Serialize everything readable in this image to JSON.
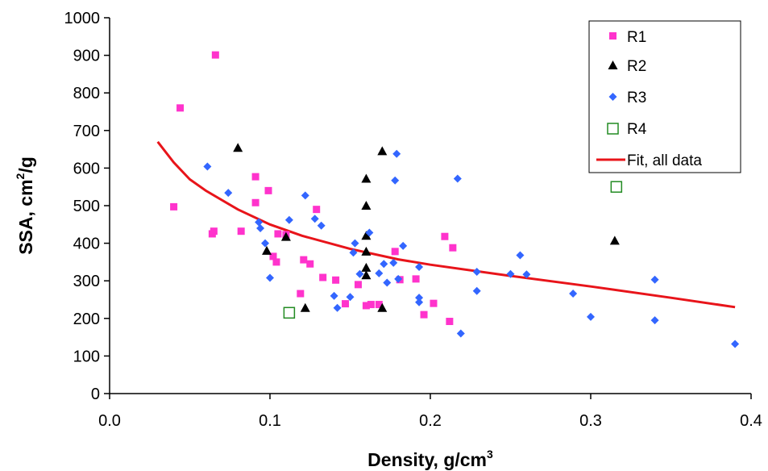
{
  "chart_data": {
    "type": "scatter",
    "title": "",
    "xlabel_main": "Density, g/cm",
    "xlabel_sup": "3",
    "ylabel_main": "SSA, cm",
    "ylabel_sup": "2",
    "ylabel_tail": "/g",
    "xlim": [
      0.0,
      0.4
    ],
    "ylim": [
      0,
      1000
    ],
    "x_ticks": [
      0.0,
      0.1,
      0.2,
      0.3,
      0.4
    ],
    "x_tick_labels": [
      "0.0",
      "0.1",
      "0.2",
      "0.3",
      "0.4"
    ],
    "y_ticks": [
      0,
      100,
      200,
      300,
      400,
      500,
      600,
      700,
      800,
      900,
      1000
    ],
    "y_tick_labels": [
      "0",
      "100",
      "200",
      "300",
      "400",
      "500",
      "600",
      "700",
      "800",
      "900",
      "1000"
    ],
    "grid": false,
    "legend_position": "top-right",
    "series": [
      {
        "name": "R1",
        "marker": "square",
        "color": "#ff33cc",
        "points": [
          [
            0.04,
            497
          ],
          [
            0.044,
            760
          ],
          [
            0.064,
            425
          ],
          [
            0.065,
            432
          ],
          [
            0.066,
            901
          ],
          [
            0.082,
            432
          ],
          [
            0.091,
            577
          ],
          [
            0.091,
            508
          ],
          [
            0.099,
            540
          ],
          [
            0.102,
            365
          ],
          [
            0.104,
            350
          ],
          [
            0.105,
            425
          ],
          [
            0.11,
            423
          ],
          [
            0.119,
            266
          ],
          [
            0.121,
            356
          ],
          [
            0.125,
            345
          ],
          [
            0.129,
            490
          ],
          [
            0.133,
            309
          ],
          [
            0.141,
            302
          ],
          [
            0.147,
            239
          ],
          [
            0.155,
            290
          ],
          [
            0.16,
            234
          ],
          [
            0.163,
            237
          ],
          [
            0.168,
            237
          ],
          [
            0.178,
            378
          ],
          [
            0.181,
            303
          ],
          [
            0.191,
            305
          ],
          [
            0.196,
            210
          ],
          [
            0.202,
            240
          ],
          [
            0.209,
            418
          ],
          [
            0.212,
            192
          ],
          [
            0.214,
            388
          ]
        ]
      },
      {
        "name": "R2",
        "marker": "triangle",
        "color": "#000000",
        "points": [
          [
            0.08,
            654
          ],
          [
            0.098,
            380
          ],
          [
            0.11,
            417
          ],
          [
            0.122,
            228
          ],
          [
            0.16,
            572
          ],
          [
            0.16,
            500
          ],
          [
            0.16,
            420
          ],
          [
            0.16,
            378
          ],
          [
            0.16,
            335
          ],
          [
            0.16,
            315
          ],
          [
            0.17,
            645
          ],
          [
            0.17,
            228
          ],
          [
            0.315,
            407
          ]
        ]
      },
      {
        "name": "R3",
        "marker": "diamond",
        "color": "#3366ff",
        "points": [
          [
            0.061,
            604
          ],
          [
            0.074,
            534
          ],
          [
            0.093,
            456
          ],
          [
            0.094,
            440
          ],
          [
            0.097,
            400
          ],
          [
            0.1,
            308
          ],
          [
            0.112,
            462
          ],
          [
            0.122,
            527
          ],
          [
            0.128,
            465
          ],
          [
            0.132,
            447
          ],
          [
            0.14,
            260
          ],
          [
            0.142,
            228
          ],
          [
            0.15,
            257
          ],
          [
            0.152,
            375
          ],
          [
            0.153,
            400
          ],
          [
            0.156,
            318
          ],
          [
            0.162,
            428
          ],
          [
            0.168,
            320
          ],
          [
            0.171,
            345
          ],
          [
            0.173,
            295
          ],
          [
            0.177,
            348
          ],
          [
            0.178,
            567
          ],
          [
            0.179,
            638
          ],
          [
            0.18,
            305
          ],
          [
            0.183,
            393
          ],
          [
            0.193,
            337
          ],
          [
            0.193,
            255
          ],
          [
            0.193,
            243
          ],
          [
            0.217,
            572
          ],
          [
            0.219,
            160
          ],
          [
            0.229,
            324
          ],
          [
            0.229,
            273
          ],
          [
            0.25,
            318
          ],
          [
            0.256,
            368
          ],
          [
            0.26,
            317
          ],
          [
            0.289,
            266
          ],
          [
            0.3,
            204
          ],
          [
            0.34,
            303
          ],
          [
            0.34,
            195
          ],
          [
            0.39,
            132
          ]
        ]
      },
      {
        "name": "R4",
        "marker": "open-square",
        "color": "#228b22",
        "points": [
          [
            0.112,
            215
          ],
          [
            0.316,
            550
          ]
        ]
      },
      {
        "name": "Fit, all data",
        "marker": "line",
        "color": "#e8141a",
        "points": [
          [
            0.03,
            670
          ],
          [
            0.04,
            615
          ],
          [
            0.05,
            570
          ],
          [
            0.06,
            540
          ],
          [
            0.08,
            490
          ],
          [
            0.1,
            450
          ],
          [
            0.12,
            420
          ],
          [
            0.15,
            385
          ],
          [
            0.18,
            357
          ],
          [
            0.2,
            343
          ],
          [
            0.25,
            313
          ],
          [
            0.3,
            285
          ],
          [
            0.35,
            255
          ],
          [
            0.39,
            230
          ]
        ]
      }
    ]
  }
}
